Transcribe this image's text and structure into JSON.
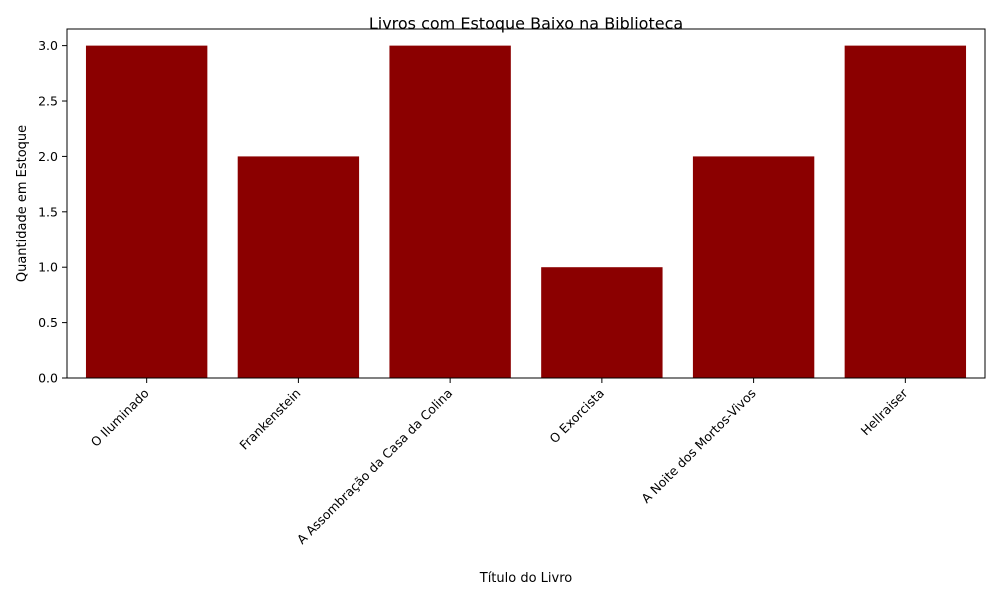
{
  "chart_data": {
    "type": "bar",
    "title": "Livros com Estoque Baixo na Biblioteca",
    "xlabel": "Título do Livro",
    "ylabel": "Quantidade em Estoque",
    "categories": [
      "O Iluminado",
      "Frankenstein",
      "A Assombração da Casa da Colina",
      "O Exorcista",
      "A Noite dos Mortos-Vivos",
      "Hellraiser"
    ],
    "values": [
      3,
      2,
      3,
      1,
      2,
      3
    ],
    "ylim": [
      0,
      3.15
    ],
    "yticks": [
      "0.0",
      "0.5",
      "1.0",
      "1.5",
      "2.0",
      "2.5",
      "3.0"
    ],
    "bar_color": "#8b0000",
    "grid": false
  }
}
